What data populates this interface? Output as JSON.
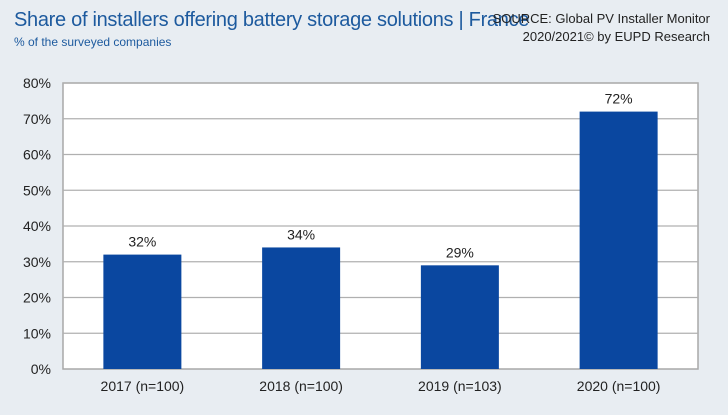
{
  "header": {
    "title": "Share of installers offering battery storage solutions | France",
    "subtitle": "% of the surveyed companies",
    "source_line1": "SOURCE: Global PV Installer Monitor",
    "source_line2": "2020/2021© by EUPD Research"
  },
  "chart_data": {
    "type": "bar",
    "categories": [
      "2017 (n=100)",
      "2018 (n=100)",
      "2019 (n=103)",
      "2020 (n=100)"
    ],
    "values": [
      32,
      34,
      29,
      72
    ],
    "data_labels": [
      "32%",
      "34%",
      "29%",
      "72%"
    ],
    "title": "Share of installers offering battery storage solutions | France",
    "subtitle": "% of the surveyed companies",
    "xlabel": "",
    "ylabel": "",
    "ylim": [
      0,
      80
    ],
    "yticks": [
      0,
      10,
      20,
      30,
      40,
      50,
      60,
      70,
      80
    ],
    "ytick_labels": [
      "0%",
      "10%",
      "20%",
      "30%",
      "40%",
      "50%",
      "60%",
      "70%",
      "80%"
    ],
    "grid": true,
    "legend": "none",
    "bar_color": "#0a47a0"
  }
}
